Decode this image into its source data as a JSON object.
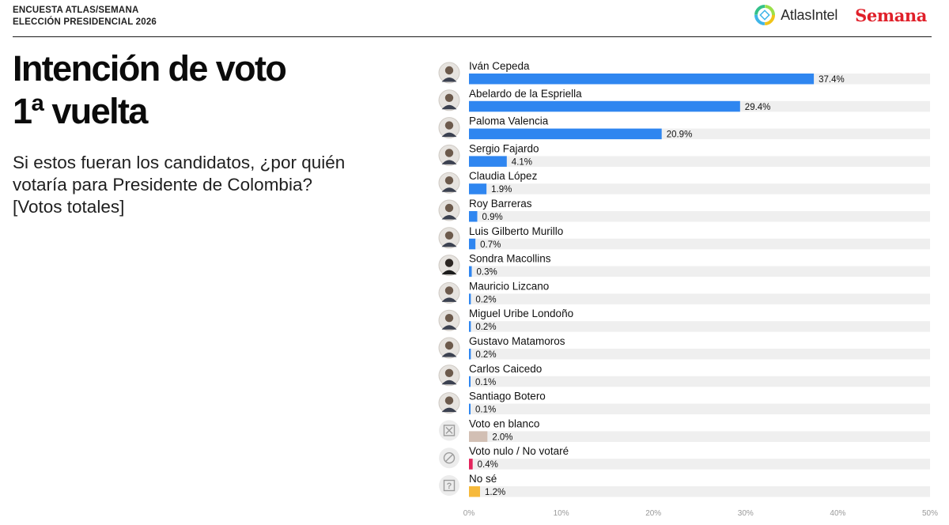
{
  "header": {
    "line1": "ENCUESTA ATLAS/SEMANA",
    "line2": "ELECCIÓN PRESIDENCIAL 2026",
    "atlas_logo_text": "AtlasIntel",
    "semana_logo_text": "Semana"
  },
  "title": {
    "line1": "Intención de voto",
    "line2": "1ª vuelta"
  },
  "subtitle": {
    "line1": "Si estos fueran los candidatos, ¿por quién",
    "line2": "votaría para Presidente de Colombia?",
    "line3": "[Votos totales]"
  },
  "chart_data": {
    "type": "bar",
    "orientation": "horizontal",
    "xlim": [
      0,
      50
    ],
    "x_ticks": [
      "0%",
      "10%",
      "20%",
      "30%",
      "40%",
      "50%"
    ],
    "categories": [
      "Iván Cepeda",
      "Abelardo de la Espriella",
      "Paloma Valencia",
      "Sergio Fajardo",
      "Claudia López",
      "Roy Barreras",
      "Luis Gilberto Murillo",
      "Sondra Macollins",
      "Mauricio Lizcano",
      "Miguel Uribe Londoño",
      "Gustavo Matamoros",
      "Carlos Caicedo",
      "Santiago Botero",
      "Voto en blanco",
      "Voto nulo / No votaré",
      "No sé"
    ],
    "values": [
      37.4,
      29.4,
      20.9,
      4.1,
      1.9,
      0.9,
      0.7,
      0.3,
      0.2,
      0.2,
      0.2,
      0.1,
      0.1,
      2.0,
      0.4,
      1.2
    ],
    "value_labels": [
      "37.4%",
      "29.4%",
      "20.9%",
      "4.1%",
      "1.9%",
      "0.9%",
      "0.7%",
      "0.3%",
      "0.2%",
      "0.2%",
      "0.2%",
      "0.1%",
      "0.1%",
      "2.0%",
      "0.4%",
      "1.2%"
    ],
    "bar_colors": [
      "#2f86f0",
      "#2f86f0",
      "#2f86f0",
      "#2f86f0",
      "#2f86f0",
      "#2f86f0",
      "#2f86f0",
      "#2f86f0",
      "#2f86f0",
      "#2f86f0",
      "#2f86f0",
      "#2f86f0",
      "#2f86f0",
      "#d2bfb4",
      "#e3245c",
      "#f6b93b"
    ],
    "track_color": "#efefef",
    "icons": [
      "avatar-icon",
      "avatar-icon",
      "avatar-icon",
      "avatar-icon",
      "avatar-icon",
      "avatar-icon",
      "avatar-icon",
      "avatar-icon",
      "avatar-icon",
      "avatar-icon",
      "avatar-icon",
      "avatar-icon",
      "avatar-icon",
      "blank-vote-icon",
      "null-vote-icon",
      "unknown-icon"
    ],
    "grid": false
  }
}
